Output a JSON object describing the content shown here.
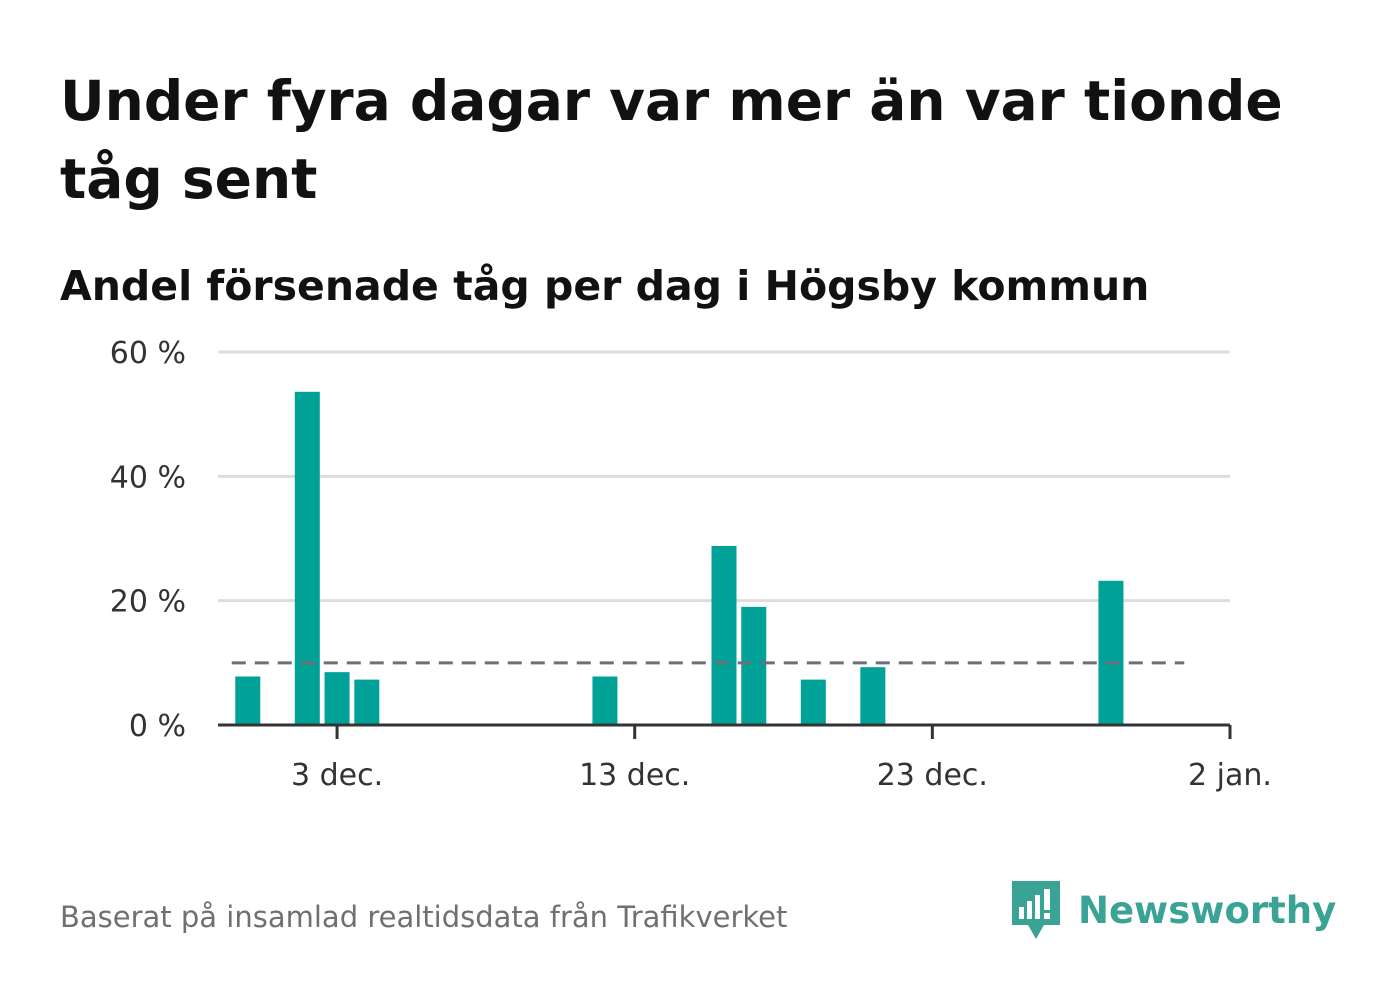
{
  "chart_data": {
    "type": "bar",
    "title": "Under fyra dagar var mer än var tionde tåg sent",
    "subtitle": "Andel försenade tåg per dag i Högsby kommun",
    "x": [
      "2023-11-30",
      "2023-12-02",
      "2023-12-03",
      "2023-12-04",
      "2023-12-12",
      "2023-12-16",
      "2023-12-17",
      "2023-12-19",
      "2023-12-21",
      "2023-12-29"
    ],
    "values": [
      7.8,
      53.6,
      8.5,
      7.3,
      7.8,
      28.8,
      19.0,
      7.3,
      9.3,
      23.2
    ],
    "reference_line": {
      "value": 10,
      "x_range": [
        "2023-11-30",
        "2024-01-01"
      ],
      "style": "dashed"
    },
    "x_axis": {
      "ticks": [
        "2023-12-03",
        "2023-12-13",
        "2023-12-23",
        "2024-01-02"
      ],
      "tick_labels": [
        "3 dec.",
        "13 dec.",
        "23 dec.",
        "2 jan."
      ],
      "range": [
        "2023-11-29",
        "2024-01-02"
      ]
    },
    "y_axis": {
      "ticks": [
        0,
        20,
        40,
        60
      ],
      "tick_labels": [
        "0 %",
        "20 %",
        "40 %",
        "60 %"
      ],
      "ylim": [
        0,
        60
      ]
    },
    "xlabel": "",
    "ylabel": "",
    "grid": true,
    "bar_color": "#00a197",
    "reference_color": "#6f6f77"
  },
  "source": "Baserat på insamlad realtidsdata från Trafikverket",
  "brand": {
    "name": "Newsworthy",
    "icon": "newsworthy-logo-icon",
    "color": "#3aa396"
  }
}
